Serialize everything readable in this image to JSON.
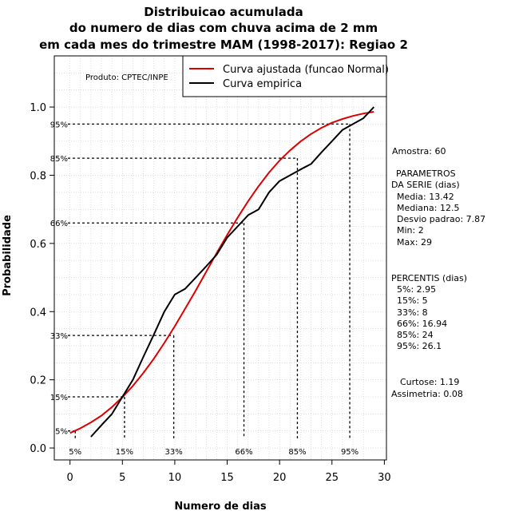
{
  "chart_data": {
    "type": "line",
    "title_lines": [
      "Distribuicao acumulada",
      "do numero de dias com chuva acima de 2 mm",
      "em cada mes do trimestre MAM (1998-2017): Regiao 2"
    ],
    "xlabel": "Numero de dias",
    "ylabel": "Probabilidade",
    "xlim": [
      -1.5,
      30.2
    ],
    "ylim": [
      -0.035,
      1.15
    ],
    "x_ticks": [
      0,
      5,
      10,
      15,
      20,
      25,
      30
    ],
    "y_ticks": [
      0.0,
      0.2,
      0.4,
      0.6,
      0.8,
      1.0
    ],
    "y_tick_labels": [
      "0.0",
      "0.2",
      "0.4",
      "0.6",
      "0.8",
      "1.0"
    ],
    "grid": true,
    "legend_position": "top-right",
    "product_label": "Produto: CPTEC/INPE",
    "series": [
      {
        "name": "Curva ajustada (funcao Normal)",
        "color": "#dd0000",
        "x": [
          0,
          1,
          2,
          3,
          4,
          5,
          6,
          7,
          8,
          9,
          10,
          11,
          12,
          13,
          14,
          15,
          16,
          17,
          18,
          19,
          20,
          21,
          22,
          23,
          24,
          25,
          26,
          27,
          28,
          29
        ],
        "y": [
          0.044,
          0.058,
          0.075,
          0.095,
          0.12,
          0.149,
          0.182,
          0.22,
          0.262,
          0.308,
          0.357,
          0.409,
          0.462,
          0.517,
          0.572,
          0.625,
          0.676,
          0.724,
          0.768,
          0.808,
          0.843,
          0.873,
          0.899,
          0.921,
          0.939,
          0.954,
          0.965,
          0.974,
          0.981,
          0.986
        ]
      },
      {
        "name": "Curva empirica",
        "color": "#000000",
        "x": [
          2,
          3,
          4,
          5,
          6,
          7,
          8,
          9,
          10,
          11,
          12,
          13,
          14,
          15,
          16,
          17,
          18,
          19,
          20,
          21,
          22,
          23,
          24,
          25,
          26,
          27,
          28,
          29
        ],
        "y": [
          0.033,
          0.067,
          0.1,
          0.15,
          0.2,
          0.267,
          0.333,
          0.4,
          0.45,
          0.467,
          0.5,
          0.533,
          0.567,
          0.617,
          0.65,
          0.683,
          0.7,
          0.75,
          0.783,
          0.8,
          0.817,
          0.833,
          0.867,
          0.9,
          0.933,
          0.95,
          0.967,
          1.0
        ]
      }
    ],
    "percentile_markers": [
      {
        "label": "5%",
        "x": 0.5,
        "y": 0.05
      },
      {
        "label": "15%",
        "x": 5.2,
        "y": 0.15
      },
      {
        "label": "33%",
        "x": 9.9,
        "y": 0.33
      },
      {
        "label": "66%",
        "x": 16.6,
        "y": 0.66
      },
      {
        "label": "85%",
        "x": 21.7,
        "y": 0.85
      },
      {
        "label": "95%",
        "x": 26.7,
        "y": 0.95
      }
    ],
    "stats": {
      "amostra": "Amostra: 60",
      "parametros_title": [
        "PARAMETROS",
        "DA SERIE (dias)"
      ],
      "parametros": [
        "Media: 13.42",
        "Mediana: 12.5",
        "Desvio padrao: 7.87",
        "Min: 2",
        "Max: 29"
      ],
      "percentis_title": "PERCENTIS (dias)",
      "percentis": [
        "5%: 2.95",
        "15%: 5",
        "33%: 8",
        "66%: 16.94",
        "85%: 24",
        "95%: 26.1"
      ],
      "curtose": "Curtose: 1.19",
      "assimetria": "Assimetria: 0.08"
    }
  }
}
